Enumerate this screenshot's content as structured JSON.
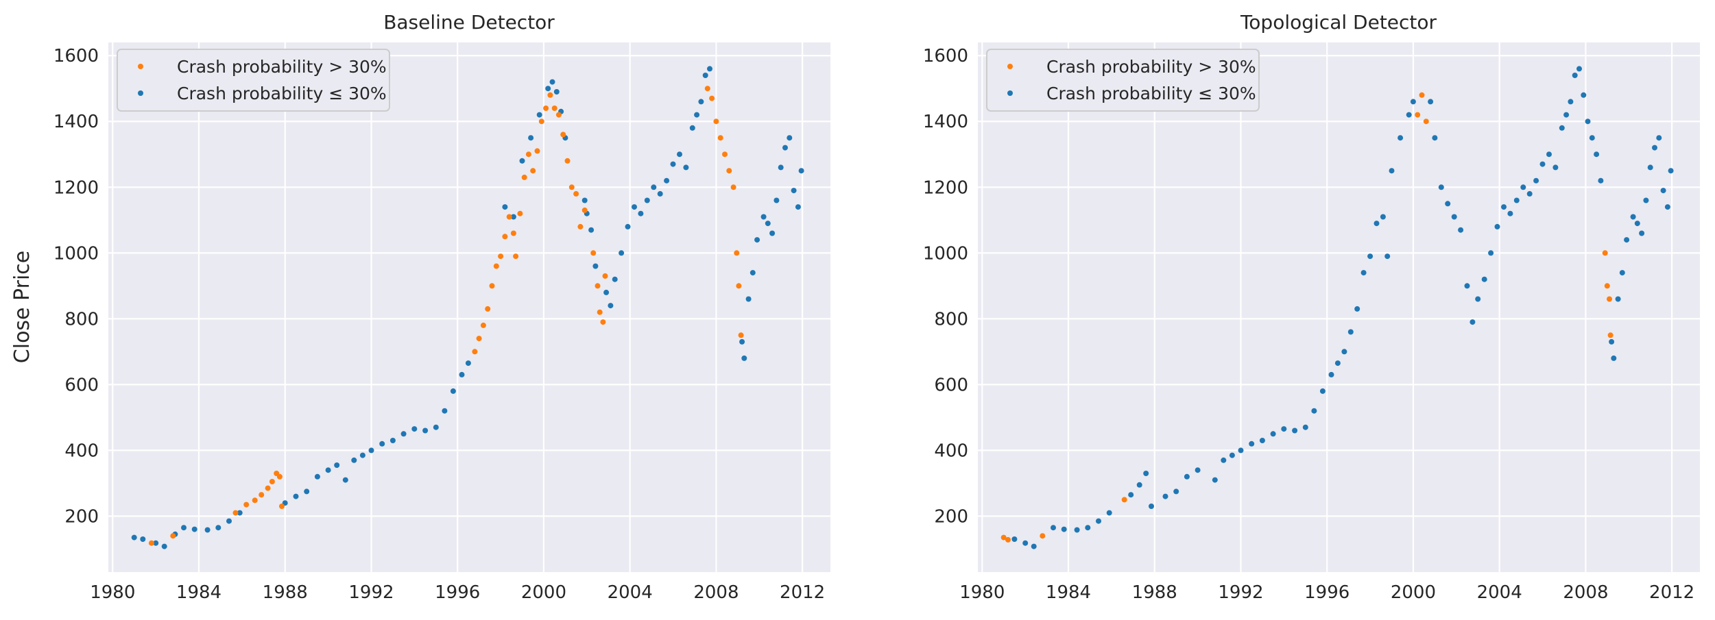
{
  "chart_data": [
    {
      "type": "scatter",
      "title": "Baseline Detector",
      "xlabel": "",
      "ylabel": "Close Price",
      "xlim": [
        1979.8,
        2013.3
      ],
      "ylim": [
        30,
        1640
      ],
      "xticks": [
        1980,
        1984,
        1988,
        1992,
        1996,
        2000,
        2004,
        2008,
        2012
      ],
      "xtick_labels": [
        "1980",
        "1984",
        "1988",
        "1992",
        "1996",
        "2000",
        "2004",
        "2008",
        "2012"
      ],
      "yticks": [
        200,
        400,
        600,
        800,
        1000,
        1200,
        1400,
        1600
      ],
      "ytick_labels": [
        "200",
        "400",
        "600",
        "800",
        "1000",
        "1200",
        "1400",
        "1600"
      ],
      "grid": true,
      "legend_position": "top-left",
      "series": [
        {
          "name": "Crash probability > 30%",
          "color": "#ff7f0e",
          "points": [
            [
              1981.8,
              118
            ],
            [
              1982.8,
              140
            ],
            [
              1985.7,
              210
            ],
            [
              1986.2,
              235
            ],
            [
              1986.6,
              248
            ],
            [
              1986.9,
              265
            ],
            [
              1987.2,
              285
            ],
            [
              1987.4,
              305
            ],
            [
              1987.6,
              330
            ],
            [
              1987.75,
              320
            ],
            [
              1987.85,
              230
            ],
            [
              1996.8,
              700
            ],
            [
              1997.0,
              740
            ],
            [
              1997.2,
              780
            ],
            [
              1997.4,
              830
            ],
            [
              1997.6,
              900
            ],
            [
              1997.8,
              960
            ],
            [
              1998.0,
              990
            ],
            [
              1998.2,
              1050
            ],
            [
              1998.4,
              1110
            ],
            [
              1998.6,
              1060
            ],
            [
              1998.7,
              990
            ],
            [
              1998.9,
              1120
            ],
            [
              1999.1,
              1230
            ],
            [
              1999.3,
              1300
            ],
            [
              1999.5,
              1250
            ],
            [
              1999.7,
              1310
            ],
            [
              1999.9,
              1400
            ],
            [
              2000.1,
              1440
            ],
            [
              2000.3,
              1480
            ],
            [
              2000.5,
              1440
            ],
            [
              2000.7,
              1420
            ],
            [
              2000.9,
              1360
            ],
            [
              2001.1,
              1280
            ],
            [
              2001.3,
              1200
            ],
            [
              2001.5,
              1180
            ],
            [
              2001.7,
              1080
            ],
            [
              2001.9,
              1130
            ],
            [
              2002.3,
              1000
            ],
            [
              2002.5,
              900
            ],
            [
              2002.6,
              820
            ],
            [
              2002.75,
              790
            ],
            [
              2002.85,
              930
            ],
            [
              2007.6,
              1500
            ],
            [
              2007.8,
              1470
            ],
            [
              2008.0,
              1400
            ],
            [
              2008.2,
              1350
            ],
            [
              2008.4,
              1300
            ],
            [
              2008.6,
              1250
            ],
            [
              2008.8,
              1200
            ],
            [
              2008.95,
              1000
            ],
            [
              2009.05,
              900
            ],
            [
              2009.15,
              750
            ]
          ]
        },
        {
          "name": "Crash probability ≤ 30%",
          "color": "#1f77b4",
          "points": [
            [
              1981.0,
              135
            ],
            [
              1981.4,
              130
            ],
            [
              1982.0,
              118
            ],
            [
              1982.4,
              108
            ],
            [
              1982.9,
              145
            ],
            [
              1983.3,
              165
            ],
            [
              1983.8,
              160
            ],
            [
              1984.4,
              158
            ],
            [
              1984.9,
              165
            ],
            [
              1985.4,
              185
            ],
            [
              1985.9,
              210
            ],
            [
              1988.0,
              240
            ],
            [
              1988.5,
              260
            ],
            [
              1989.0,
              275
            ],
            [
              1989.5,
              320
            ],
            [
              1990.0,
              340
            ],
            [
              1990.4,
              355
            ],
            [
              1990.8,
              310
            ],
            [
              1991.2,
              370
            ],
            [
              1991.6,
              385
            ],
            [
              1992.0,
              400
            ],
            [
              1992.5,
              420
            ],
            [
              1993.0,
              430
            ],
            [
              1993.5,
              450
            ],
            [
              1994.0,
              465
            ],
            [
              1994.5,
              460
            ],
            [
              1995.0,
              470
            ],
            [
              1995.4,
              520
            ],
            [
              1995.8,
              580
            ],
            [
              1996.2,
              630
            ],
            [
              1996.5,
              665
            ],
            [
              1998.2,
              1140
            ],
            [
              1998.6,
              1110
            ],
            [
              1999.0,
              1280
            ],
            [
              1999.4,
              1350
            ],
            [
              1999.8,
              1420
            ],
            [
              2000.2,
              1500
            ],
            [
              2000.4,
              1520
            ],
            [
              2000.6,
              1490
            ],
            [
              2000.8,
              1430
            ],
            [
              2001.0,
              1350
            ],
            [
              2001.9,
              1160
            ],
            [
              2002.0,
              1120
            ],
            [
              2002.2,
              1070
            ],
            [
              2002.4,
              960
            ],
            [
              2002.9,
              880
            ],
            [
              2003.1,
              840
            ],
            [
              2003.3,
              920
            ],
            [
              2003.6,
              1000
            ],
            [
              2003.9,
              1080
            ],
            [
              2004.2,
              1140
            ],
            [
              2004.5,
              1120
            ],
            [
              2004.8,
              1160
            ],
            [
              2005.1,
              1200
            ],
            [
              2005.4,
              1180
            ],
            [
              2005.7,
              1220
            ],
            [
              2006.0,
              1270
            ],
            [
              2006.3,
              1300
            ],
            [
              2006.6,
              1260
            ],
            [
              2006.9,
              1380
            ],
            [
              2007.1,
              1420
            ],
            [
              2007.3,
              1460
            ],
            [
              2007.5,
              1540
            ],
            [
              2007.7,
              1560
            ],
            [
              2009.2,
              730
            ],
            [
              2009.3,
              680
            ],
            [
              2009.5,
              860
            ],
            [
              2009.7,
              940
            ],
            [
              2009.9,
              1040
            ],
            [
              2010.2,
              1110
            ],
            [
              2010.4,
              1090
            ],
            [
              2010.6,
              1060
            ],
            [
              2010.8,
              1160
            ],
            [
              2011.0,
              1260
            ],
            [
              2011.2,
              1320
            ],
            [
              2011.4,
              1350
            ],
            [
              2011.6,
              1190
            ],
            [
              2011.8,
              1140
            ],
            [
              2011.95,
              1250
            ]
          ]
        }
      ]
    },
    {
      "type": "scatter",
      "title": "Topological Detector",
      "xlabel": "",
      "ylabel": "",
      "xlim": [
        1979.8,
        2013.3
      ],
      "ylim": [
        30,
        1640
      ],
      "xticks": [
        1980,
        1984,
        1988,
        1992,
        1996,
        2000,
        2004,
        2008,
        2012
      ],
      "xtick_labels": [
        "1980",
        "1984",
        "1988",
        "1992",
        "1996",
        "2000",
        "2004",
        "2008",
        "2012"
      ],
      "yticks": [
        200,
        400,
        600,
        800,
        1000,
        1200,
        1400,
        1600
      ],
      "ytick_labels": [
        "200",
        "400",
        "600",
        "800",
        "1000",
        "1200",
        "1400",
        "1600"
      ],
      "grid": true,
      "legend_position": "top-left",
      "series": [
        {
          "name": "Crash probability > 30%",
          "color": "#ff7f0e",
          "points": [
            [
              1981.0,
              135
            ],
            [
              1981.2,
              128
            ],
            [
              1982.8,
              140
            ],
            [
              1986.6,
              250
            ],
            [
              2000.2,
              1420
            ],
            [
              2000.4,
              1480
            ],
            [
              2000.6,
              1400
            ],
            [
              2008.9,
              1000
            ],
            [
              2009.0,
              900
            ],
            [
              2009.1,
              860
            ],
            [
              2009.15,
              750
            ]
          ]
        },
        {
          "name": "Crash probability ≤ 30%",
          "color": "#1f77b4",
          "points": [
            [
              1981.5,
              130
            ],
            [
              1982.0,
              118
            ],
            [
              1982.4,
              108
            ],
            [
              1983.3,
              165
            ],
            [
              1983.8,
              160
            ],
            [
              1984.4,
              158
            ],
            [
              1984.9,
              165
            ],
            [
              1985.4,
              185
            ],
            [
              1985.9,
              210
            ],
            [
              1986.9,
              265
            ],
            [
              1987.3,
              295
            ],
            [
              1987.6,
              330
            ],
            [
              1987.85,
              230
            ],
            [
              1988.5,
              260
            ],
            [
              1989.0,
              275
            ],
            [
              1989.5,
              320
            ],
            [
              1990.0,
              340
            ],
            [
              1990.8,
              310
            ],
            [
              1991.2,
              370
            ],
            [
              1991.6,
              385
            ],
            [
              1992.0,
              400
            ],
            [
              1992.5,
              420
            ],
            [
              1993.0,
              430
            ],
            [
              1993.5,
              450
            ],
            [
              1994.0,
              465
            ],
            [
              1994.5,
              460
            ],
            [
              1995.0,
              470
            ],
            [
              1995.4,
              520
            ],
            [
              1995.8,
              580
            ],
            [
              1996.2,
              630
            ],
            [
              1996.5,
              665
            ],
            [
              1996.8,
              700
            ],
            [
              1997.1,
              760
            ],
            [
              1997.4,
              830
            ],
            [
              1997.7,
              940
            ],
            [
              1998.0,
              990
            ],
            [
              1998.3,
              1090
            ],
            [
              1998.6,
              1110
            ],
            [
              1998.8,
              990
            ],
            [
              1999.0,
              1250
            ],
            [
              1999.4,
              1350
            ],
            [
              1999.8,
              1420
            ],
            [
              2000.0,
              1460
            ],
            [
              2000.8,
              1460
            ],
            [
              2001.0,
              1350
            ],
            [
              2001.3,
              1200
            ],
            [
              2001.6,
              1150
            ],
            [
              2001.9,
              1110
            ],
            [
              2002.2,
              1070
            ],
            [
              2002.5,
              900
            ],
            [
              2002.75,
              790
            ],
            [
              2003.0,
              860
            ],
            [
              2003.3,
              920
            ],
            [
              2003.6,
              1000
            ],
            [
              2003.9,
              1080
            ],
            [
              2004.2,
              1140
            ],
            [
              2004.5,
              1120
            ],
            [
              2004.8,
              1160
            ],
            [
              2005.1,
              1200
            ],
            [
              2005.4,
              1180
            ],
            [
              2005.7,
              1220
            ],
            [
              2006.0,
              1270
            ],
            [
              2006.3,
              1300
            ],
            [
              2006.6,
              1260
            ],
            [
              2006.9,
              1380
            ],
            [
              2007.1,
              1420
            ],
            [
              2007.3,
              1460
            ],
            [
              2007.5,
              1540
            ],
            [
              2007.7,
              1560
            ],
            [
              2007.9,
              1480
            ],
            [
              2008.1,
              1400
            ],
            [
              2008.3,
              1350
            ],
            [
              2008.5,
              1300
            ],
            [
              2008.7,
              1220
            ],
            [
              2009.2,
              730
            ],
            [
              2009.3,
              680
            ],
            [
              2009.5,
              860
            ],
            [
              2009.7,
              940
            ],
            [
              2009.9,
              1040
            ],
            [
              2010.2,
              1110
            ],
            [
              2010.4,
              1090
            ],
            [
              2010.6,
              1060
            ],
            [
              2010.8,
              1160
            ],
            [
              2011.0,
              1260
            ],
            [
              2011.2,
              1320
            ],
            [
              2011.4,
              1350
            ],
            [
              2011.6,
              1190
            ],
            [
              2011.8,
              1140
            ],
            [
              2011.95,
              1250
            ]
          ]
        }
      ]
    }
  ]
}
